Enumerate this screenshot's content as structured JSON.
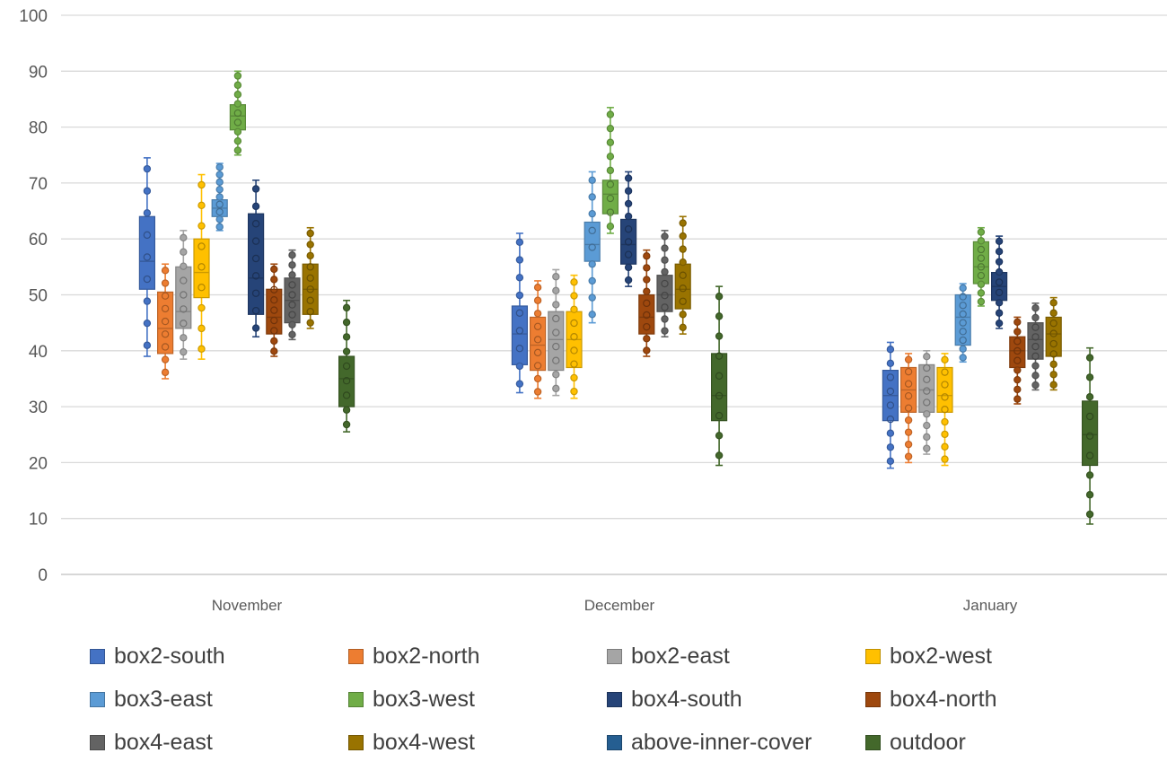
{
  "chart_data": {
    "type": "boxplot",
    "title": "",
    "xlabel": "",
    "ylabel": "",
    "ylim": [
      0,
      100
    ],
    "y_ticks": [
      "0",
      "10",
      "20",
      "30",
      "40",
      "50",
      "60",
      "70",
      "80",
      "90",
      "100"
    ],
    "grid": true,
    "legend_position": "bottom",
    "categories": [
      "November",
      "December",
      "January"
    ],
    "series": [
      {
        "name": "box2-south",
        "color": "#4472C4",
        "stats": [
          {
            "min": 39,
            "q1": 51,
            "median": 56,
            "q3": 64,
            "max": 74.5
          },
          {
            "min": 32.5,
            "q1": 37.5,
            "median": 43,
            "q3": 48,
            "max": 61
          },
          {
            "min": 19,
            "q1": 27.5,
            "median": 32,
            "q3": 36.5,
            "max": 41.5
          }
        ]
      },
      {
        "name": "box2-north",
        "color": "#ED7D31",
        "stats": [
          {
            "min": 35,
            "q1": 39.5,
            "median": 44,
            "q3": 50.5,
            "max": 55.5
          },
          {
            "min": 31.5,
            "q1": 36.5,
            "median": 41,
            "q3": 46,
            "max": 52.5
          },
          {
            "min": 20,
            "q1": 29,
            "median": 33,
            "q3": 37,
            "max": 39.5
          }
        ]
      },
      {
        "name": "box2-east",
        "color": "#A5A5A5",
        "stats": [
          {
            "min": 38.5,
            "q1": 44,
            "median": 47,
            "q3": 55,
            "max": 61.5
          },
          {
            "min": 32,
            "q1": 36.5,
            "median": 42,
            "q3": 47,
            "max": 54.5
          },
          {
            "min": 21.5,
            "q1": 29,
            "median": 33,
            "q3": 37.5,
            "max": 40
          }
        ]
      },
      {
        "name": "box2-west",
        "color": "#FFC000",
        "stats": [
          {
            "min": 38.5,
            "q1": 49.5,
            "median": 54,
            "q3": 60,
            "max": 71.5
          },
          {
            "min": 31.5,
            "q1": 37,
            "median": 42,
            "q3": 47,
            "max": 53.5
          },
          {
            "min": 19.5,
            "q1": 29,
            "median": 32,
            "q3": 37,
            "max": 39.5
          }
        ]
      },
      {
        "name": "box3-east",
        "color": "#5B9BD5",
        "stats": [
          {
            "min": 61.5,
            "q1": 64,
            "median": 65.5,
            "q3": 67,
            "max": 73.5
          },
          {
            "min": 45,
            "q1": 56,
            "median": 59,
            "q3": 63,
            "max": 72
          },
          {
            "min": 38,
            "q1": 41,
            "median": 46,
            "q3": 50,
            "max": 52
          }
        ]
      },
      {
        "name": "box3-west",
        "color": "#70AD47",
        "stats": [
          {
            "min": 75,
            "q1": 79.5,
            "median": 82,
            "q3": 84,
            "max": 90
          },
          {
            "min": 61,
            "q1": 64.5,
            "median": 68,
            "q3": 70.5,
            "max": 83.5
          },
          {
            "min": 48,
            "q1": 52,
            "median": 55,
            "q3": 59.5,
            "max": 62
          }
        ]
      },
      {
        "name": "box4-south",
        "color": "#264478",
        "stats": [
          {
            "min": 42.5,
            "q1": 46.5,
            "median": 53,
            "q3": 64.5,
            "max": 70.5
          },
          {
            "min": 51.5,
            "q1": 55.5,
            "median": 59,
            "q3": 63.5,
            "max": 72
          },
          {
            "min": 44,
            "q1": 49,
            "median": 51.5,
            "q3": 54,
            "max": 60.5
          }
        ]
      },
      {
        "name": "box4-north",
        "color": "#9E480E",
        "stats": [
          {
            "min": 39,
            "q1": 43,
            "median": 46,
            "q3": 51,
            "max": 55.5
          },
          {
            "min": 39,
            "q1": 43,
            "median": 46,
            "q3": 50,
            "max": 58
          },
          {
            "min": 30.5,
            "q1": 37,
            "median": 40,
            "q3": 42.5,
            "max": 46
          }
        ]
      },
      {
        "name": "box4-east",
        "color": "#636363",
        "stats": [
          {
            "min": 42,
            "q1": 45,
            "median": 49,
            "q3": 53,
            "max": 58
          },
          {
            "min": 42.5,
            "q1": 47,
            "median": 50,
            "q3": 53.5,
            "max": 61.5
          },
          {
            "min": 33,
            "q1": 38.5,
            "median": 42,
            "q3": 45,
            "max": 48.5
          }
        ]
      },
      {
        "name": "box4-west",
        "color": "#997300",
        "stats": [
          {
            "min": 44,
            "q1": 46.5,
            "median": 51,
            "q3": 55.5,
            "max": 62
          },
          {
            "min": 43,
            "q1": 47.5,
            "median": 51,
            "q3": 55.5,
            "max": 64
          },
          {
            "min": 33,
            "q1": 39,
            "median": 43,
            "q3": 46,
            "max": 49.5
          }
        ]
      },
      {
        "name": "above-inner-cover",
        "color": "#255E91",
        "stats": [
          null,
          null,
          null
        ]
      },
      {
        "name": "outdoor",
        "color": "#43682B",
        "stats": [
          {
            "min": 25.5,
            "q1": 30,
            "median": 35,
            "q3": 39,
            "max": 49
          },
          {
            "min": 19.5,
            "q1": 27.5,
            "median": 32,
            "q3": 39.5,
            "max": 51.5
          },
          {
            "min": 9,
            "q1": 19.5,
            "median": 25,
            "q3": 31,
            "max": 40.5
          }
        ]
      }
    ]
  }
}
